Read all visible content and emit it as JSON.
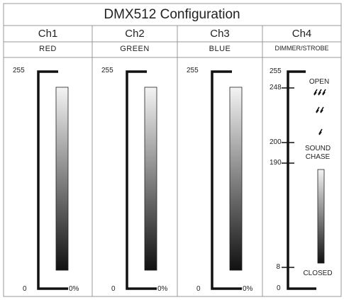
{
  "header": {
    "title": "DMX512 Configuration"
  },
  "channels": [
    {
      "name": "Ch1",
      "function": "RED",
      "max": "255",
      "min": "0",
      "min_percent": "0%"
    },
    {
      "name": "Ch2",
      "function": "GREEN",
      "max": "255",
      "min": "0",
      "min_percent": "0%"
    },
    {
      "name": "Ch3",
      "function": "BLUE",
      "max": "255",
      "min": "0",
      "min_percent": "0%"
    },
    {
      "name": "Ch4",
      "function": "DIMMER/STROBE",
      "scale": [
        "255",
        "248",
        "200",
        "190",
        "8",
        "0"
      ],
      "notes": [
        "OPEN",
        "SOUND CHASE",
        "CLOSED"
      ]
    }
  ]
}
